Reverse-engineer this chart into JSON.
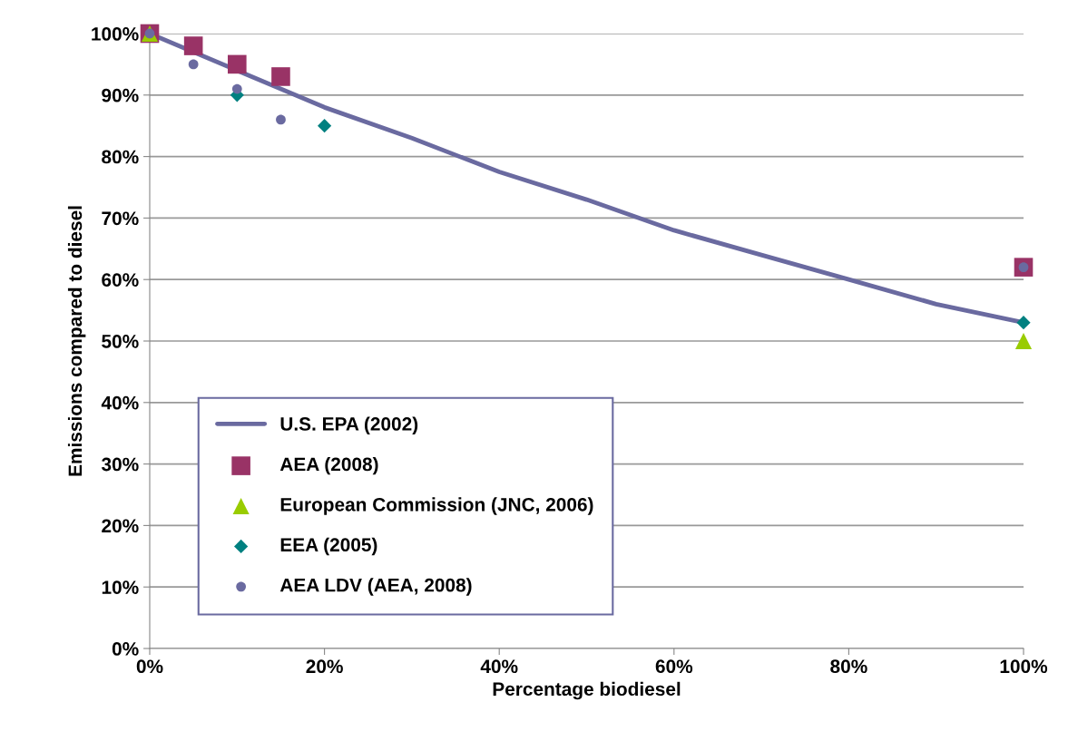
{
  "chart_data": {
    "type": "scatter",
    "xlabel": "Percentage biodiesel",
    "ylabel": "Emissions compared to diesel",
    "xlim": [
      0,
      100
    ],
    "ylim": [
      0,
      100
    ],
    "xticks": [
      {
        "value": 0,
        "label": "0%"
      },
      {
        "value": 20,
        "label": "20%"
      },
      {
        "value": 40,
        "label": "40%"
      },
      {
        "value": 60,
        "label": "60%"
      },
      {
        "value": 80,
        "label": "80%"
      },
      {
        "value": 100,
        "label": "100%"
      }
    ],
    "yticks": [
      {
        "value": 0,
        "label": "0%"
      },
      {
        "value": 10,
        "label": "10%"
      },
      {
        "value": 20,
        "label": "20%"
      },
      {
        "value": 30,
        "label": "30%"
      },
      {
        "value": 40,
        "label": "40%"
      },
      {
        "value": 50,
        "label": "50%"
      },
      {
        "value": 60,
        "label": "60%"
      },
      {
        "value": 70,
        "label": "70%"
      },
      {
        "value": 80,
        "label": "80%"
      },
      {
        "value": 90,
        "label": "90%"
      },
      {
        "value": 100,
        "label": "100%"
      }
    ],
    "grid": "y",
    "legend": "bottom left",
    "series": [
      {
        "name": "U.S. EPA (2002)",
        "type": "line",
        "marker": "none",
        "color": "#6a6aa0",
        "x": [
          0,
          10,
          20,
          30,
          40,
          50,
          60,
          70,
          80,
          90,
          100
        ],
        "values": [
          100,
          94,
          88,
          83,
          77.5,
          73,
          68,
          64,
          60,
          56,
          53
        ]
      },
      {
        "name": "AEA (2008)",
        "marker": "square",
        "color": "#993366",
        "x": [
          0,
          5,
          10,
          15,
          100
        ],
        "values": [
          100,
          98,
          95,
          93,
          62
        ]
      },
      {
        "name": "European Commission (JNC, 2006)",
        "marker": "triangle",
        "color": "#99cc00",
        "x": [
          0,
          100
        ],
        "values": [
          100,
          50
        ]
      },
      {
        "name": "EEA (2005)",
        "marker": "diamond",
        "color": "#008080",
        "x": [
          10,
          20,
          100
        ],
        "values": [
          90,
          85,
          53
        ]
      },
      {
        "name": "AEA LDV (AEA, 2008)",
        "marker": "circle",
        "color": "#6a6aa0",
        "x": [
          0,
          5,
          10,
          15,
          100
        ],
        "values": [
          100,
          95,
          91,
          86,
          62
        ]
      }
    ]
  }
}
